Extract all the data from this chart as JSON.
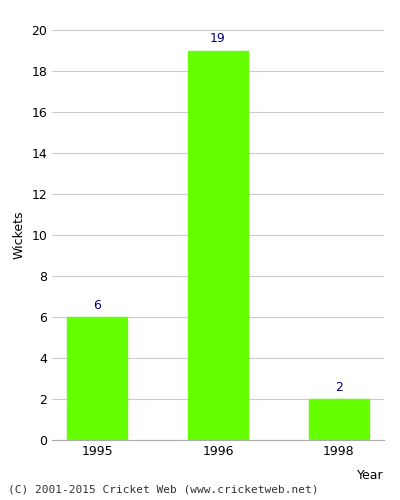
{
  "categories": [
    "1995",
    "1996",
    "1998"
  ],
  "values": [
    6,
    19,
    2
  ],
  "bar_color": "#66ff00",
  "bar_edgecolor": "#66ff00",
  "label_color": "#000080",
  "ylabel": "Wickets",
  "xlabel": "Year",
  "ylim": [
    0,
    20
  ],
  "yticks": [
    0,
    2,
    4,
    6,
    8,
    10,
    12,
    14,
    16,
    18,
    20
  ],
  "grid_color": "#cccccc",
  "background_color": "#ffffff",
  "footer_text": "(C) 2001-2015 Cricket Web (www.cricketweb.net)",
  "label_fontsize": 9,
  "axis_label_fontsize": 9,
  "tick_fontsize": 9,
  "footer_fontsize": 8
}
